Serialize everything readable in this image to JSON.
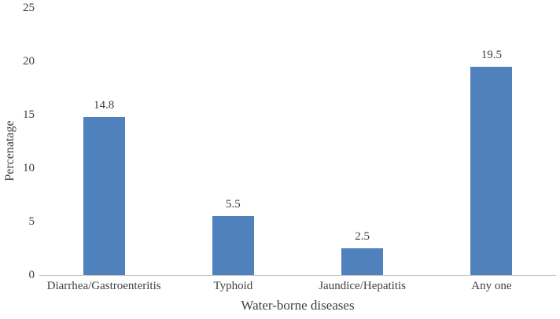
{
  "chart_data": {
    "type": "bar",
    "title": "",
    "categories": [
      "Diarrhea/Gastroenteritis",
      "Typhoid",
      "Jaundice/Hepatitis",
      "Any one"
    ],
    "values": [
      14.8,
      5.5,
      2.5,
      19.5
    ],
    "data_labels": [
      "14.8",
      "5.5",
      "2.5",
      "19.5"
    ],
    "xlabel": "Water-borne diseases",
    "ylabel": "Percenatage",
    "ylim": [
      0,
      25
    ],
    "yticks": [
      0,
      5,
      10,
      15,
      20,
      25
    ],
    "grid": false,
    "legend_position": "none",
    "bar_color": "#4F81BD",
    "axis_line_color": "#BFBFBF",
    "text_color": "#3F3F3F",
    "background_color": "#FFFFFF"
  }
}
